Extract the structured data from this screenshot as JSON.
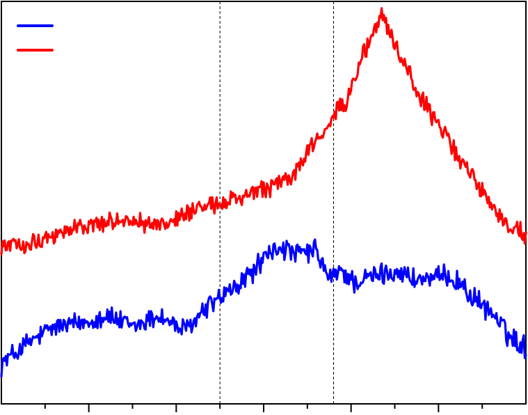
{
  "chart_data": {
    "type": "line",
    "title": "",
    "xlabel": "",
    "ylabel": "",
    "xlim": [
      0,
      6
    ],
    "ylim": [
      0,
      1
    ],
    "grid": false,
    "legend": {
      "placement": "top-left",
      "entries": [
        {
          "color": "#0000ff",
          "label": ""
        },
        {
          "color": "#ff0000",
          "label": ""
        }
      ]
    },
    "reference_lines_x": [
      2.5,
      3.8
    ],
    "series": [
      {
        "color": "#0000ff",
        "noise": 0.022,
        "points": [
          [
            0.0,
            0.1
          ],
          [
            0.3,
            0.15
          ],
          [
            0.6,
            0.19
          ],
          [
            0.9,
            0.2
          ],
          [
            1.2,
            0.22
          ],
          [
            1.5,
            0.19
          ],
          [
            1.8,
            0.22
          ],
          [
            2.1,
            0.18
          ],
          [
            2.4,
            0.25
          ],
          [
            2.7,
            0.29
          ],
          [
            3.05,
            0.37
          ],
          [
            3.2,
            0.39
          ],
          [
            3.35,
            0.37
          ],
          [
            3.6,
            0.38
          ],
          [
            3.75,
            0.31
          ],
          [
            3.9,
            0.33
          ],
          [
            4.05,
            0.3
          ],
          [
            4.3,
            0.32
          ],
          [
            4.55,
            0.33
          ],
          [
            4.7,
            0.31
          ],
          [
            4.85,
            0.31
          ],
          [
            5.0,
            0.31
          ],
          [
            5.1,
            0.32
          ],
          [
            5.25,
            0.3
          ],
          [
            5.4,
            0.26
          ],
          [
            5.6,
            0.23
          ],
          [
            5.8,
            0.17
          ],
          [
            6.0,
            0.14
          ]
        ]
      },
      {
        "color": "#ff0000",
        "noise": 0.018,
        "points": [
          [
            0.0,
            0.39
          ],
          [
            0.3,
            0.4
          ],
          [
            0.6,
            0.42
          ],
          [
            0.9,
            0.44
          ],
          [
            1.2,
            0.45
          ],
          [
            1.5,
            0.46
          ],
          [
            1.8,
            0.44
          ],
          [
            2.1,
            0.47
          ],
          [
            2.4,
            0.49
          ],
          [
            2.7,
            0.51
          ],
          [
            3.0,
            0.53
          ],
          [
            3.3,
            0.56
          ],
          [
            3.5,
            0.62
          ],
          [
            3.8,
            0.72
          ],
          [
            3.95,
            0.75
          ],
          [
            4.15,
            0.87
          ],
          [
            4.35,
            0.97
          ],
          [
            4.55,
            0.87
          ],
          [
            4.75,
            0.78
          ],
          [
            5.0,
            0.69
          ],
          [
            5.25,
            0.61
          ],
          [
            5.5,
            0.53
          ],
          [
            5.75,
            0.45
          ],
          [
            6.0,
            0.42
          ]
        ]
      }
    ],
    "x_ticks": {
      "major": [
        1,
        2,
        3,
        4,
        5
      ],
      "minor": [
        0.5,
        1.5,
        2.5,
        3.5,
        4.5,
        5.5
      ]
    }
  }
}
